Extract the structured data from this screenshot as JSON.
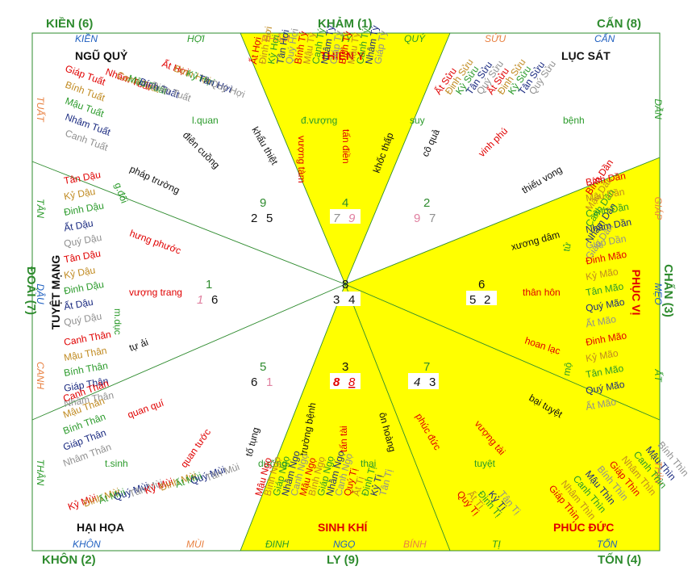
{
  "corners": [
    {
      "id": "kien",
      "label": "KIỀN (6)"
    },
    {
      "id": "kham",
      "label": "KHẢM (1)"
    },
    {
      "id": "can",
      "label": "CẤN (8)"
    },
    {
      "id": "doai",
      "label": "ĐOÀI (7)"
    },
    {
      "id": "chan",
      "label": "CHẤN (3)"
    },
    {
      "id": "khon",
      "label": "KHÔN (2)"
    },
    {
      "id": "ly",
      "label": "LY (9)"
    },
    {
      "id": "ton",
      "label": "TỐN (4)"
    }
  ],
  "sectors": {
    "ngu_quy": "NGŨ QUỶ",
    "thien_y": "THIÊN Y",
    "luc_sat": "LỤC SÁT",
    "tuyet_mang": "TUYỆT MẠNG",
    "phuc_vi": "PHỤC VỊ",
    "hai_hoa": "HẠI HỌA",
    "sinh_khi": "SINH KHÍ",
    "phuc_duc": "PHÚC ĐỨC"
  },
  "mountains": {
    "top": [
      "KIỀN",
      "HỢI",
      "NHÂM",
      "TÝ",
      "QUÝ",
      "SỬU",
      "CẤN"
    ],
    "bottom": [
      "KHÔN",
      "MÙI",
      "ĐINH",
      "NGỌ",
      "BÍNH",
      "TỊ",
      "TỐN"
    ],
    "left": [
      "TUẤT",
      "TÂN",
      "DẬU",
      "CANH",
      "THÂN"
    ],
    "right": [
      "DẦN",
      "GIÁP",
      "MẸO",
      "ẤT",
      "THÌN"
    ]
  },
  "grid": {
    "nw": [
      "9",
      "2",
      "5"
    ],
    "n": [
      "4",
      "7",
      "9"
    ],
    "ne": [
      "2",
      "9",
      "7"
    ],
    "w": [
      "1",
      "1",
      "6"
    ],
    "c": [
      "8",
      "3",
      "4"
    ],
    "e": [
      "6",
      "5",
      "2"
    ],
    "sw": [
      "5",
      "6",
      "1"
    ],
    "s": [
      "3",
      "8",
      "8"
    ],
    "se": [
      "7",
      "4",
      "3"
    ]
  },
  "stars": {
    "l_quan": "l.quan",
    "dien_cuong": "điên cuồng",
    "khau_thiet": "khẩu thiệt",
    "d_vuong": "đ.vượng",
    "vuong_tam": "vượng tàm",
    "tan_dien": "tấn điền",
    "khoc_thap": "khốc thấp",
    "suy": "suy",
    "co_qua": "cô quả",
    "vinh_phu": "vinh phú",
    "benh": "bệnh",
    "thieu_vong": "thiếu vong",
    "phap_truong": "pháp trường",
    "g_doi": "g.đối",
    "hung_phuoc": "hưng phước",
    "vuong_trang": "vượng trang",
    "m_duc": "m.dục",
    "tu_ai": "tự ải",
    "quan_qui": "quan quí",
    "quan_tuoc": "quan tước",
    "to_tung": "tố tụng",
    "truong_benh": "trường bệnh",
    "tan_tai": "tấn tài",
    "on_hoang": "ôn hoàng",
    "phuc_duc_s": "phúc đức",
    "vuong_tai": "vượng tài",
    "bai_tuyet": "bại tuyệt",
    "hoan_lac": "hoan lạc",
    "than_hon": "thân hôn",
    "xuong_dam": "xương dâm",
    "tu": "tử",
    "mo": "mộ",
    "t_sinh": "t.sinh",
    "duong": "dưỡng",
    "thai": "thai",
    "tuyet": "tuyệt"
  },
  "can_chi": {
    "ngu_quy": [
      "Giáp Tuất",
      "Bính Tuất",
      "Mậu Tuất",
      "Nhâm Tuất",
      "Canh Tuất",
      "Nhâm Tuất",
      "Canh Tuất",
      "Mậu Tuất",
      "Bính Tuất",
      "Giáp Tuất",
      "Ất Hợi",
      "Đinh Hợi",
      "Kỷ Hợi",
      "Tân Hợi",
      "Quý Hợi"
    ],
    "thien_y": [
      "Ất Hợi",
      "Đinh Hợi",
      "Kỷ Hợi",
      "Tân Hợi",
      "Quý Hợi",
      "Bính Tý",
      "Mậu Tý",
      "Canh Tý",
      "Nhâm Tý",
      "Giáp Tý",
      "Bính Tý",
      "Mậu Tý",
      "Canh Tý",
      "Nhâm Tý",
      "Giáp Tý"
    ],
    "luc_sat": [
      "Ất Sửu",
      "Đinh Sửu",
      "Kỷ Sửu",
      "Tân Sửu",
      "Quý Sửu",
      "Ất Sửu",
      "Đinh Sửu",
      "Kỷ Sửu",
      "Tân Sửu",
      "Quý Sửu",
      "Bính Dần",
      "Mậu Dần",
      "Canh Dần",
      "Nhâm Dần",
      "Giáp Dần"
    ],
    "tuyet_mang": [
      "Tân Dậu",
      "Kỷ Dậu",
      "Đinh Dậu",
      "Ất Dậu",
      "Quý Dậu",
      "Tân Dậu",
      "Kỷ Dậu",
      "Đinh Dậu",
      "Ất Dậu",
      "Quý Dậu",
      "Canh Thân",
      "Mậu Thân",
      "Bính Thân",
      "Giáp Thân",
      "Nhâm Thân"
    ],
    "phuc_vi": [
      "Bính Dần",
      "Mậu Dần",
      "Canh Dần",
      "Nhâm Dần",
      "Giáp Dần",
      "Đinh Mão",
      "Kỷ Mão",
      "Tân Mão",
      "Quý Mão",
      "Ất Mão",
      "Đinh Mão",
      "Kỷ Mão",
      "Tân Mão",
      "Quý Mão",
      "Ất Mão"
    ],
    "hai_hoa": [
      "Canh Thân",
      "Mậu Thân",
      "Bính Thân",
      "Giáp Thân",
      "Nhâm Thân",
      "Kỷ Mùi",
      "Đinh Mùi",
      "Ất Mùi",
      "Quý Mùi",
      "Tân Mùi",
      "Kỷ Mùi",
      "Đinh Mùi",
      "Ất Mùi",
      "Quý Mùi",
      "Tân Mùi"
    ],
    "sinh_khi": [
      "Mậu Ngọ",
      "Bính Ngọ",
      "Giáp Ngọ",
      "Nhâm Ngọ",
      "Canh Ngọ",
      "Mậu Ngọ",
      "Bính Ngọ",
      "Giáp Ngọ",
      "Nhâm Ngọ",
      "Canh Ngọ",
      "Quý Tị",
      "Ất Tị",
      "Đinh Tị",
      "Kỷ Tị",
      "Tân Tị"
    ],
    "phuc_duc": [
      "Quý Tị",
      "Ất Tị",
      "Đinh Tị",
      "Kỷ Tị",
      "Tân Tị",
      "Giáp Thìn",
      "Nhâm Thìn",
      "Canh Thìn",
      "Mậu Thìn",
      "Bính Thìn",
      "Giáp Thìn",
      "Nhâm Thìn",
      "Canh Thìn",
      "Mậu Thìn",
      "Bính Thìn"
    ]
  },
  "colors": {
    "yellow": "#ffff00",
    "border": "#2e8b2e",
    "red": "#e00000",
    "orange": "#e88040",
    "green": "#2a9a2a",
    "navy": "#1a2a80",
    "blue": "#2060c0",
    "gray": "#909090",
    "pink": "#e080a0",
    "olive": "#c08a20",
    "darkred": "#b00020"
  }
}
